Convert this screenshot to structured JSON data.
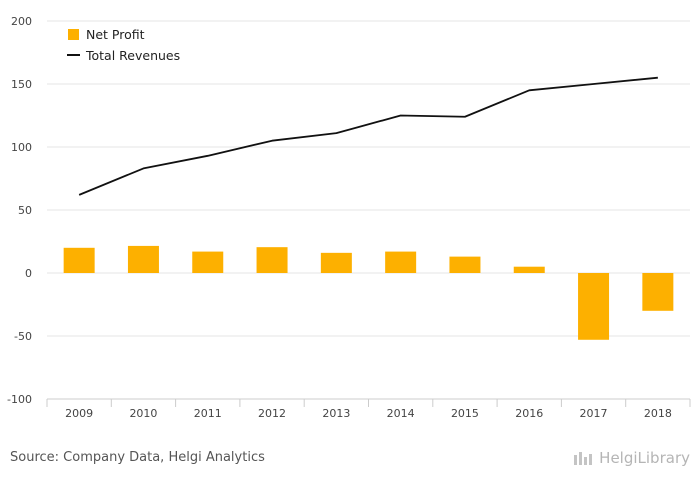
{
  "chart_data": {
    "type": "bar",
    "categories": [
      "2009",
      "2010",
      "2011",
      "2012",
      "2013",
      "2014",
      "2015",
      "2016",
      "2017",
      "2018"
    ],
    "series": [
      {
        "name": "Net Profit",
        "type": "bar",
        "color": "#FDB000",
        "values": [
          20,
          21.5,
          17,
          20.5,
          16,
          17,
          13,
          5,
          -53,
          -30
        ]
      },
      {
        "name": "Total Revenues",
        "type": "line",
        "color": "#111111",
        "values": [
          62,
          83,
          93,
          105,
          111,
          125,
          124,
          145,
          150,
          155
        ]
      }
    ],
    "yticks": [
      200,
      150,
      100,
      50,
      0,
      -50,
      -100
    ],
    "ylim": [
      -100,
      200
    ],
    "grid": true,
    "legend": "top-left"
  },
  "footer": {
    "source": "Source: Company Data, Helgi Analytics",
    "brand": "HelgiLibrary"
  }
}
